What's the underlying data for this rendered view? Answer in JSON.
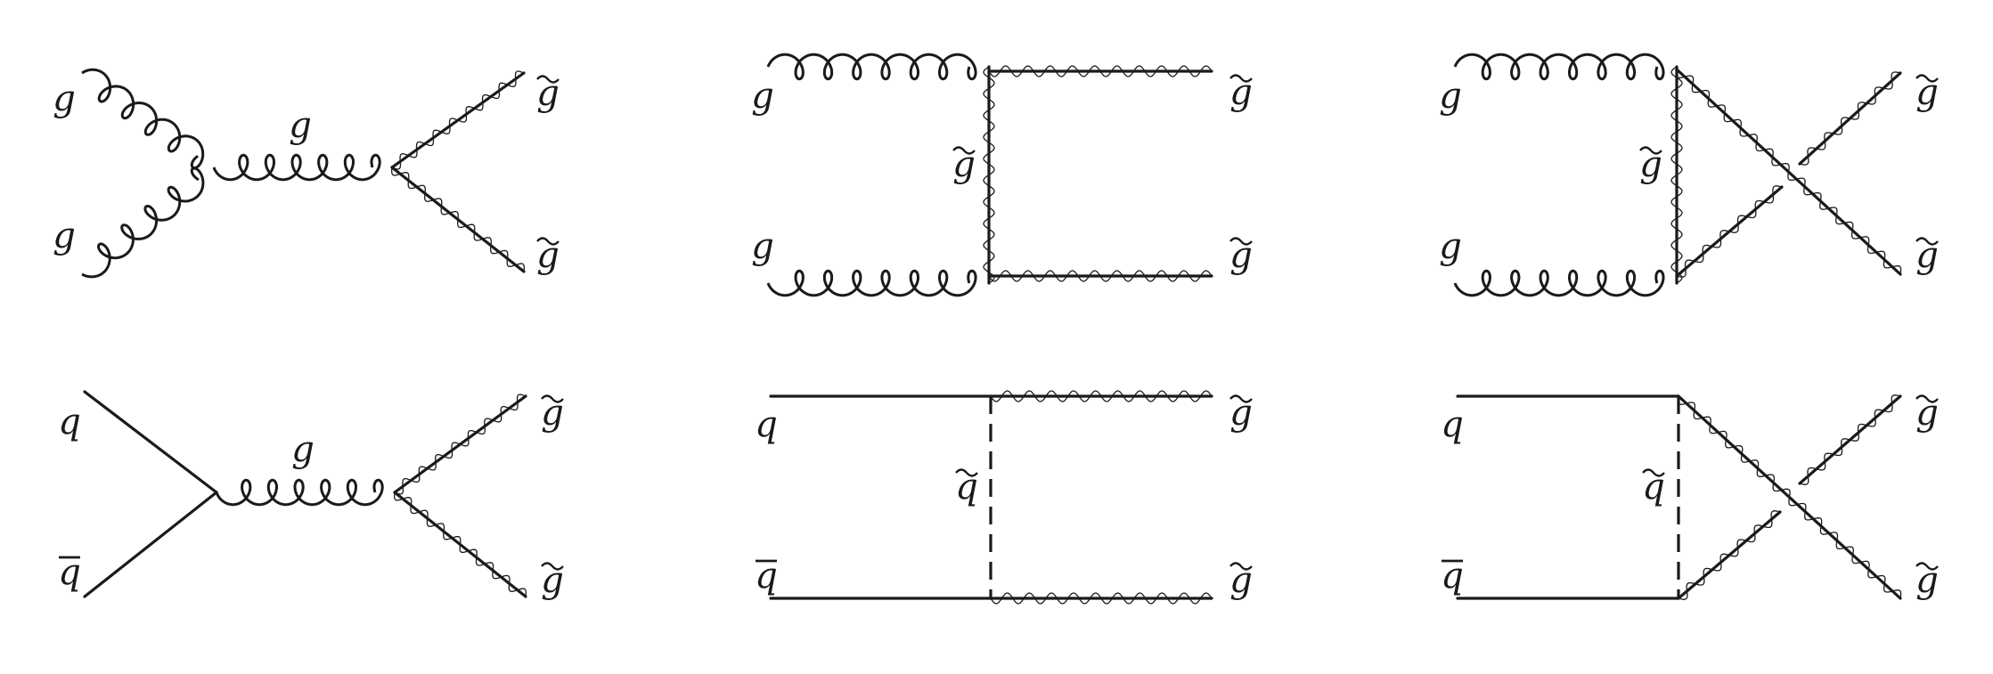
{
  "colors": {
    "ink": "#1a1a1a",
    "background": "#ffffff"
  },
  "labels": {
    "g": "g",
    "q": "q",
    "qbar": "q",
    "gluino": "g",
    "squark": "q"
  },
  "diagrams": [
    {
      "id": "gg-s-channel",
      "incoming": [
        "g",
        "g"
      ],
      "internal": "g",
      "outgoing": [
        "g̃",
        "g̃"
      ]
    },
    {
      "id": "gg-t-channel",
      "incoming": [
        "g",
        "g"
      ],
      "internal": "g̃",
      "outgoing": [
        "g̃",
        "g̃"
      ]
    },
    {
      "id": "gg-u-channel",
      "incoming": [
        "g",
        "g"
      ],
      "internal": "g̃",
      "outgoing": [
        "g̃",
        "g̃"
      ]
    },
    {
      "id": "qqbar-s-channel",
      "incoming": [
        "q",
        "q̄"
      ],
      "internal": "g",
      "outgoing": [
        "g̃",
        "g̃"
      ]
    },
    {
      "id": "qqbar-t-channel",
      "incoming": [
        "q",
        "q̄"
      ],
      "internal": "q̃",
      "outgoing": [
        "g̃",
        "g̃"
      ]
    },
    {
      "id": "qqbar-u-channel",
      "incoming": [
        "q",
        "q̄"
      ],
      "internal": "q̃",
      "outgoing": [
        "g̃",
        "g̃"
      ]
    }
  ]
}
